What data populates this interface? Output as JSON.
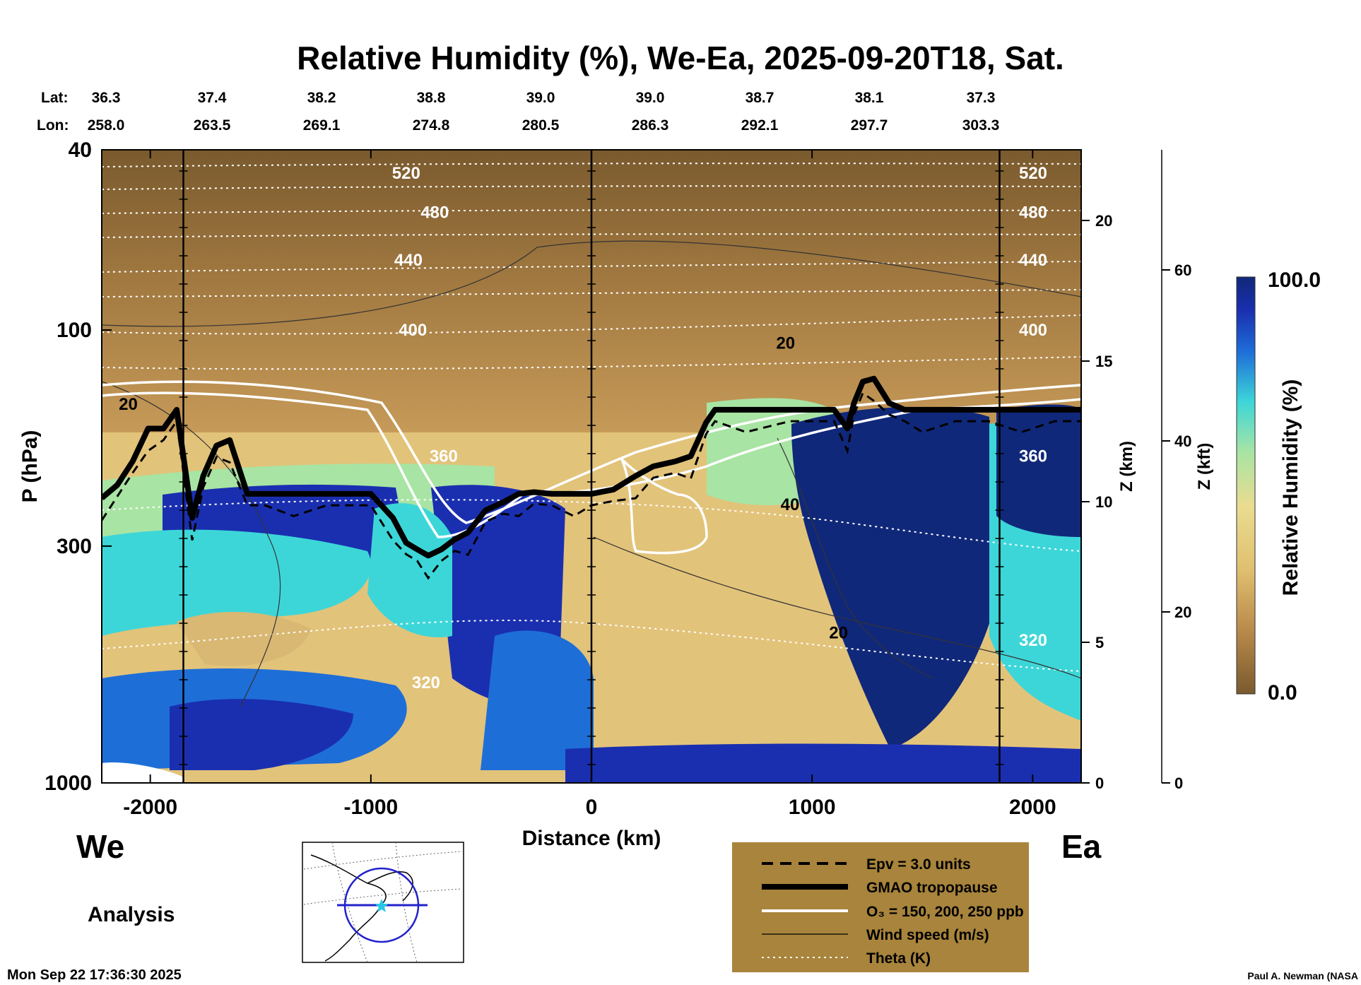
{
  "chart_data": {
    "type": "heatmap",
    "title": "Relative Humidity (%), We-Ea, 2025-09-20T18, Sat.",
    "xlabel": "Distance (km)",
    "ylabel": "P (hPa)",
    "z_km_label": "Z (km)",
    "z_kft_label": "Z (kft)",
    "colorbar_label": "Relative Humidity (%)",
    "colorbar_range": [
      0.0,
      100.0
    ],
    "colorbar_max_label": "100.0",
    "colorbar_min_label": "0.0",
    "xlim": [
      -2220,
      2220
    ],
    "ylim_hpa": [
      1000,
      40
    ],
    "x_ticks": [
      {
        "value": -2000,
        "label": "-2000"
      },
      {
        "value": -1000,
        "label": "-1000"
      },
      {
        "value": 0,
        "label": "0"
      },
      {
        "value": 1000,
        "label": "1000"
      },
      {
        "value": 2000,
        "label": "2000"
      }
    ],
    "p_ticks": [
      {
        "value": 40,
        "label": "40"
      },
      {
        "value": 100,
        "label": "100"
      },
      {
        "value": 300,
        "label": "300"
      },
      {
        "value": 1000,
        "label": "1000"
      }
    ],
    "z_km_ticks": [
      {
        "value": 0,
        "label": "0"
      },
      {
        "value": 5,
        "label": "5"
      },
      {
        "value": 10,
        "label": "10"
      },
      {
        "value": 15,
        "label": "15"
      },
      {
        "value": 20,
        "label": "20"
      }
    ],
    "z_kft_ticks": [
      {
        "value": 0,
        "label": "0"
      },
      {
        "value": 20,
        "label": "20"
      },
      {
        "value": 40,
        "label": "40"
      },
      {
        "value": 60,
        "label": "60"
      }
    ],
    "lat_title": "Lat:",
    "lon_title": "Lon:",
    "lat_values": [
      "36.3",
      "37.4",
      "38.2",
      "38.8",
      "39.0",
      "39.0",
      "38.7",
      "38.1",
      "37.3"
    ],
    "lon_values": [
      "258.0",
      "263.5",
      "269.1",
      "274.8",
      "280.5",
      "286.3",
      "292.1",
      "297.7",
      "303.3"
    ],
    "location_x_km": [
      -2220,
      -1720,
      -1220,
      -720,
      -220,
      280,
      780,
      1280,
      1780
    ],
    "vertical_markers_km": [
      -1850,
      0,
      1850
    ],
    "theta_contours": [
      {
        "label": "520",
        "p": 45,
        "label_x": -840
      },
      {
        "label": "480",
        "p": 55,
        "label_x": -710
      },
      {
        "label": "440",
        "p": 70,
        "label_x": -830
      },
      {
        "label": "400",
        "p": 100,
        "label_x": -810
      },
      {
        "label": "360",
        "p": 190,
        "label_x": -670
      },
      {
        "label": "320",
        "p": 600,
        "label_x": -750
      }
    ],
    "theta_right_labels": [
      "520",
      "480",
      "440",
      "400",
      "360",
      "320"
    ],
    "wind_labels": [
      {
        "label": "20",
        "x": -2100,
        "p": 150
      },
      {
        "label": "20",
        "x": 880,
        "p": 110
      },
      {
        "label": "40",
        "x": 900,
        "p": 250
      },
      {
        "label": "20",
        "x": 1120,
        "p": 480
      }
    ],
    "tropopause": {
      "x": [
        -2220,
        -2150,
        -2080,
        -2010,
        -1940,
        -1880,
        -1810,
        -1760,
        -1700,
        -1640,
        -1560,
        -1480,
        -1350,
        -1200,
        -1000,
        -900,
        -840,
        -790,
        -740,
        -680,
        -620,
        -560,
        -480,
        -400,
        -330,
        -260,
        -180,
        -80,
        0,
        100,
        200,
        280,
        380,
        450,
        520,
        560,
        700,
        900,
        1100,
        1160,
        1190,
        1230,
        1280,
        1350,
        1420,
        1500,
        1650,
        1800,
        1950,
        2100,
        2220
      ],
      "p": [
        235,
        220,
        195,
        165,
        165,
        150,
        260,
        210,
        180,
        175,
        230,
        230,
        230,
        230,
        230,
        260,
        295,
        305,
        315,
        305,
        290,
        280,
        250,
        240,
        230,
        228,
        230,
        230,
        230,
        225,
        210,
        200,
        195,
        190,
        160,
        150,
        150,
        150,
        150,
        165,
        145,
        130,
        128,
        145,
        150,
        150,
        150,
        150,
        150,
        150,
        150
      ]
    },
    "epv_line_label": "Epv = 3.0 units"
  },
  "legend": {
    "epv": "Epv = 3.0 units",
    "tropopause": "GMAO tropopause",
    "ozone": "O₃ = 150, 200, 250 ppb",
    "wind": "Wind speed (m/s)",
    "theta": "Theta (K)"
  },
  "labels": {
    "west": "We",
    "east": "Ea",
    "mode": "Analysis",
    "timestamp": "Mon Sep 22 17:36:30 2025",
    "credit": "Paul A. Newman (NASA"
  },
  "colors": {
    "rh_dry": "#7a5a2e",
    "rh_brown_mid": "#b8894a",
    "rh_tan": "#d9b873",
    "rh_yellow": "#efe08f",
    "rh_green": "#a8e4a3",
    "rh_cyan": "#3dd6d8",
    "rh_blue": "#1e6ed8",
    "rh_deep_blue": "#1a2fb0",
    "rh_navy": "#10287a",
    "legend_bg": "#a8843c"
  }
}
